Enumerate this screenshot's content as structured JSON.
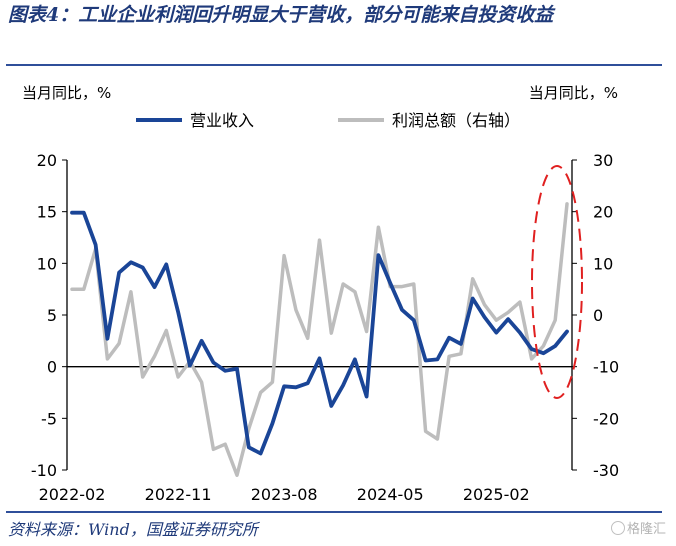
{
  "title": "图表4：工业企业利润回升明显大于营收，部分可能来自投资收益",
  "source": "资料来源：Wind，国盛证券研究所",
  "watermark": "格隆汇",
  "chart_data": {
    "type": "line",
    "left_axis_label": "当月同比，%",
    "right_axis_label": "当月同比，%",
    "yleft_ticks": [
      "20",
      "15",
      "10",
      "5",
      "0",
      "-5",
      "-10"
    ],
    "yright_ticks": [
      "30",
      "20",
      "10",
      "0",
      "-10",
      "-20",
      "-30"
    ],
    "yleft_lim": [
      -10,
      20
    ],
    "yright_lim": [
      -30,
      30
    ],
    "x_ticks": [
      "2022-02",
      "2022-11",
      "2023-08",
      "2024-05",
      "2025-02"
    ],
    "x": [
      "2022-02",
      "2022-03",
      "2022-04",
      "2022-05",
      "2022-06",
      "2022-07",
      "2022-08",
      "2022-09",
      "2022-10",
      "2022-11",
      "2022-12",
      "2023-01",
      "2023-02",
      "2023-03",
      "2023-04",
      "2023-05",
      "2023-06",
      "2023-07",
      "2023-08",
      "2023-09",
      "2023-10",
      "2023-11",
      "2023-12",
      "2024-01",
      "2024-02",
      "2024-03",
      "2024-04",
      "2024-05",
      "2024-06",
      "2024-07",
      "2024-08",
      "2024-09",
      "2024-10",
      "2024-11",
      "2024-12",
      "2025-01",
      "2025-02",
      "2025-03",
      "2025-04",
      "2025-05",
      "2025-06",
      "2025-07",
      "2025-08"
    ],
    "series": [
      {
        "name": "营业收入",
        "axis": "left",
        "color": "#1a4597",
        "values": [
          14.9,
          14.9,
          11.8,
          2.7,
          9.1,
          10.1,
          9.6,
          7.7,
          9.9,
          5.3,
          0.1,
          2.5,
          0.4,
          -0.4,
          -0.2,
          -7.8,
          -8.4,
          -5.5,
          -1.9,
          -2.0,
          -1.6,
          0.8,
          -3.8,
          -1.8,
          0.7,
          -2.9,
          10.8,
          8.1,
          5.5,
          4.5,
          0.6,
          0.7,
          2.8,
          2.2,
          6.6,
          4.8,
          3.3,
          4.6,
          3.3,
          1.7,
          1.3,
          2.0,
          3.4
        ]
      },
      {
        "name": "利润总额（右轴）",
        "axis": "right",
        "color": "#bdbdbd",
        "values": [
          5,
          5,
          12.8,
          -8.5,
          -5.5,
          4.5,
          -12,
          -8,
          -3,
          -12,
          -9,
          -13,
          -26,
          -25,
          -31,
          -22,
          -15,
          -13,
          11.5,
          1,
          -4.5,
          14.5,
          -3.5,
          6,
          4.5,
          -3.2,
          17,
          5.5,
          5.5,
          6,
          -22.5,
          -24,
          -8,
          -7.5,
          7,
          2,
          -1,
          0.5,
          2.5,
          -8.5,
          -6,
          -1,
          21.5
        ]
      }
    ],
    "legend": "top",
    "highlight": "dashed red ellipse around latest months"
  }
}
